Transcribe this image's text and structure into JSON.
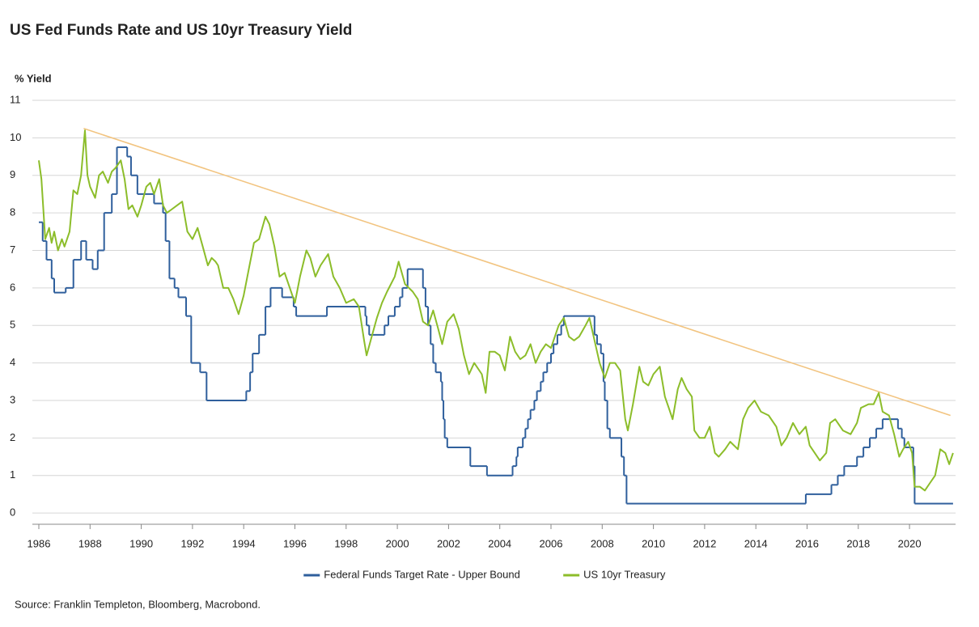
{
  "chart_data": {
    "type": "line",
    "title": "US Fed Funds Rate and US 10yr Treasury Yield",
    "y_label": "% Yield",
    "source": "Source: Franklin Templeton, Bloomberg, Macrobond.",
    "xlim": [
      1986,
      2021.8
    ],
    "ylim": [
      -0.3,
      11
    ],
    "xticks": [
      1986,
      1988,
      1990,
      1992,
      1994,
      1996,
      1998,
      2000,
      2002,
      2004,
      2006,
      2008,
      2010,
      2012,
      2014,
      2016,
      2018,
      2020
    ],
    "yticks": [
      0,
      1,
      2,
      3,
      4,
      5,
      6,
      7,
      8,
      9,
      10,
      11
    ],
    "grid": true,
    "legend": "bottom",
    "series": [
      {
        "name": "Federal Funds Target Rate - Upper Bound",
        "color": "#2f5f9c",
        "step": "post",
        "x": [
          1986.0,
          1986.15,
          1986.3,
          1986.5,
          1986.6,
          1987.05,
          1987.35,
          1987.65,
          1987.85,
          1988.1,
          1988.3,
          1988.55,
          1988.85,
          1989.05,
          1989.45,
          1989.6,
          1989.85,
          1990.5,
          1990.85,
          1990.95,
          1991.1,
          1991.3,
          1991.45,
          1991.75,
          1991.95,
          1992.3,
          1992.55,
          1994.1,
          1994.25,
          1994.35,
          1994.6,
          1994.85,
          1995.05,
          1995.5,
          1995.95,
          1996.05,
          1997.25,
          1998.75,
          1998.8,
          1998.9,
          1999.5,
          1999.65,
          1999.9,
          2000.1,
          2000.2,
          2000.4,
          2001.0,
          2001.1,
          2001.2,
          2001.3,
          2001.4,
          2001.5,
          2001.7,
          2001.75,
          2001.8,
          2001.85,
          2001.95,
          2002.85,
          2003.5,
          2004.5,
          2004.65,
          2004.7,
          2004.9,
          2005.0,
          2005.1,
          2005.2,
          2005.35,
          2005.45,
          2005.6,
          2005.7,
          2005.85,
          2006.0,
          2006.1,
          2006.25,
          2006.4,
          2006.5,
          2007.7,
          2007.8,
          2007.95,
          2008.05,
          2008.1,
          2008.2,
          2008.3,
          2008.75,
          2008.85,
          2008.95,
          2015.95,
          2016.95,
          2017.2,
          2017.45,
          2017.95,
          2018.2,
          2018.45,
          2018.7,
          2018.95,
          2019.55,
          2019.7,
          2019.8,
          2020.15,
          2020.2,
          2021.7
        ],
        "values": [
          7.75,
          7.25,
          6.75,
          6.25,
          5.875,
          6.0,
          6.75,
          7.25,
          6.75,
          6.5,
          7.0,
          8.0,
          8.5,
          9.75,
          9.5,
          9.0,
          8.5,
          8.25,
          8.0,
          7.25,
          6.25,
          6.0,
          5.75,
          5.25,
          4.0,
          3.75,
          3.0,
          3.25,
          3.75,
          4.25,
          4.75,
          5.5,
          6.0,
          5.75,
          5.5,
          5.25,
          5.5,
          5.25,
          5.0,
          4.75,
          5.0,
          5.25,
          5.5,
          5.75,
          6.0,
          6.5,
          6.0,
          5.5,
          5.0,
          4.5,
          4.0,
          3.75,
          3.5,
          3.0,
          2.5,
          2.0,
          1.75,
          1.25,
          1.0,
          1.25,
          1.5,
          1.75,
          2.0,
          2.25,
          2.5,
          2.75,
          3.0,
          3.25,
          3.5,
          3.75,
          4.0,
          4.25,
          4.5,
          4.75,
          5.0,
          5.25,
          4.75,
          4.5,
          4.25,
          3.5,
          3.0,
          2.25,
          2.0,
          1.5,
          1.0,
          0.25,
          0.5,
          0.75,
          1.0,
          1.25,
          1.5,
          1.75,
          2.0,
          2.25,
          2.5,
          2.25,
          2.0,
          1.75,
          1.25,
          0.25,
          0.25
        ]
      },
      {
        "name": "US 10yr Treasury",
        "color": "#8cbd2a",
        "x": [
          1986.0,
          1986.1,
          1986.25,
          1986.4,
          1986.5,
          1986.6,
          1986.75,
          1986.9,
          1987.0,
          1987.2,
          1987.35,
          1987.5,
          1987.65,
          1987.8,
          1987.9,
          1988.0,
          1988.2,
          1988.35,
          1988.5,
          1988.7,
          1988.85,
          1989.0,
          1989.2,
          1989.35,
          1989.5,
          1989.65,
          1989.85,
          1990.0,
          1990.2,
          1990.35,
          1990.5,
          1990.7,
          1990.85,
          1991.0,
          1991.2,
          1991.4,
          1991.6,
          1991.8,
          1992.0,
          1992.2,
          1992.4,
          1992.6,
          1992.75,
          1992.9,
          1993.0,
          1993.2,
          1993.4,
          1993.6,
          1993.8,
          1994.0,
          1994.2,
          1994.4,
          1994.6,
          1994.85,
          1995.0,
          1995.2,
          1995.4,
          1995.6,
          1995.8,
          1996.0,
          1996.2,
          1996.45,
          1996.6,
          1996.8,
          1997.0,
          1997.3,
          1997.5,
          1997.75,
          1998.0,
          1998.3,
          1998.5,
          1998.7,
          1998.8,
          1999.0,
          1999.2,
          1999.4,
          1999.6,
          1999.9,
          2000.05,
          2000.3,
          2000.6,
          2000.8,
          2001.0,
          2001.2,
          2001.4,
          2001.6,
          2001.75,
          2001.95,
          2002.2,
          2002.4,
          2002.6,
          2002.8,
          2003.0,
          2003.3,
          2003.45,
          2003.6,
          2003.8,
          2004.0,
          2004.2,
          2004.4,
          2004.6,
          2004.8,
          2005.0,
          2005.2,
          2005.4,
          2005.6,
          2005.8,
          2006.0,
          2006.3,
          2006.5,
          2006.7,
          2006.9,
          2007.1,
          2007.35,
          2007.5,
          2007.7,
          2007.9,
          2008.1,
          2008.3,
          2008.5,
          2008.7,
          2008.9,
          2009.0,
          2009.2,
          2009.45,
          2009.6,
          2009.8,
          2010.0,
          2010.25,
          2010.45,
          2010.6,
          2010.75,
          2010.95,
          2011.1,
          2011.3,
          2011.5,
          2011.6,
          2011.8,
          2012.0,
          2012.2,
          2012.4,
          2012.55,
          2012.8,
          2013.0,
          2013.3,
          2013.5,
          2013.7,
          2013.95,
          2014.2,
          2014.5,
          2014.8,
          2015.0,
          2015.2,
          2015.45,
          2015.7,
          2015.95,
          2016.1,
          2016.5,
          2016.75,
          2016.9,
          2017.1,
          2017.4,
          2017.7,
          2017.95,
          2018.1,
          2018.4,
          2018.6,
          2018.8,
          2018.95,
          2019.2,
          2019.4,
          2019.6,
          2019.75,
          2019.95,
          2020.1,
          2020.2,
          2020.4,
          2020.6,
          2020.8,
          2021.0,
          2021.2,
          2021.4,
          2021.55,
          2021.7
        ],
        "values": [
          9.4,
          8.9,
          7.3,
          7.6,
          7.2,
          7.5,
          7.0,
          7.3,
          7.1,
          7.5,
          8.6,
          8.5,
          9.0,
          10.2,
          9.0,
          8.7,
          8.4,
          9.0,
          9.1,
          8.8,
          9.1,
          9.2,
          9.4,
          8.9,
          8.1,
          8.2,
          7.9,
          8.2,
          8.7,
          8.8,
          8.5,
          8.9,
          8.2,
          8.0,
          8.1,
          8.2,
          8.3,
          7.5,
          7.3,
          7.6,
          7.1,
          6.6,
          6.8,
          6.7,
          6.6,
          6.0,
          6.0,
          5.7,
          5.3,
          5.8,
          6.5,
          7.2,
          7.3,
          7.9,
          7.7,
          7.1,
          6.3,
          6.4,
          6.0,
          5.6,
          6.3,
          7.0,
          6.8,
          6.3,
          6.6,
          6.9,
          6.3,
          6.0,
          5.6,
          5.7,
          5.5,
          4.6,
          4.2,
          4.7,
          5.2,
          5.6,
          5.9,
          6.3,
          6.7,
          6.1,
          5.9,
          5.7,
          5.1,
          5.0,
          5.4,
          4.9,
          4.5,
          5.1,
          5.3,
          4.9,
          4.2,
          3.7,
          4.0,
          3.7,
          3.2,
          4.3,
          4.3,
          4.2,
          3.8,
          4.7,
          4.3,
          4.1,
          4.2,
          4.5,
          4.0,
          4.3,
          4.5,
          4.4,
          5.0,
          5.2,
          4.7,
          4.6,
          4.7,
          5.0,
          5.2,
          4.6,
          4.0,
          3.6,
          4.0,
          4.0,
          3.8,
          2.5,
          2.2,
          2.9,
          3.9,
          3.5,
          3.4,
          3.7,
          3.9,
          3.1,
          2.8,
          2.5,
          3.3,
          3.6,
          3.3,
          3.1,
          2.2,
          2.0,
          2.0,
          2.3,
          1.6,
          1.5,
          1.7,
          1.9,
          1.7,
          2.5,
          2.8,
          3.0,
          2.7,
          2.6,
          2.3,
          1.8,
          2.0,
          2.4,
          2.1,
          2.3,
          1.8,
          1.4,
          1.6,
          2.4,
          2.5,
          2.2,
          2.1,
          2.4,
          2.8,
          2.9,
          2.9,
          3.2,
          2.7,
          2.6,
          2.1,
          1.5,
          1.7,
          1.9,
          1.6,
          0.7,
          0.7,
          0.6,
          0.8,
          1.0,
          1.7,
          1.6,
          1.3,
          1.6
        ]
      }
    ],
    "trendline": {
      "x": [
        1987.75,
        2021.6
      ],
      "values": [
        10.25,
        2.6
      ],
      "color": "#f2c480"
    }
  }
}
